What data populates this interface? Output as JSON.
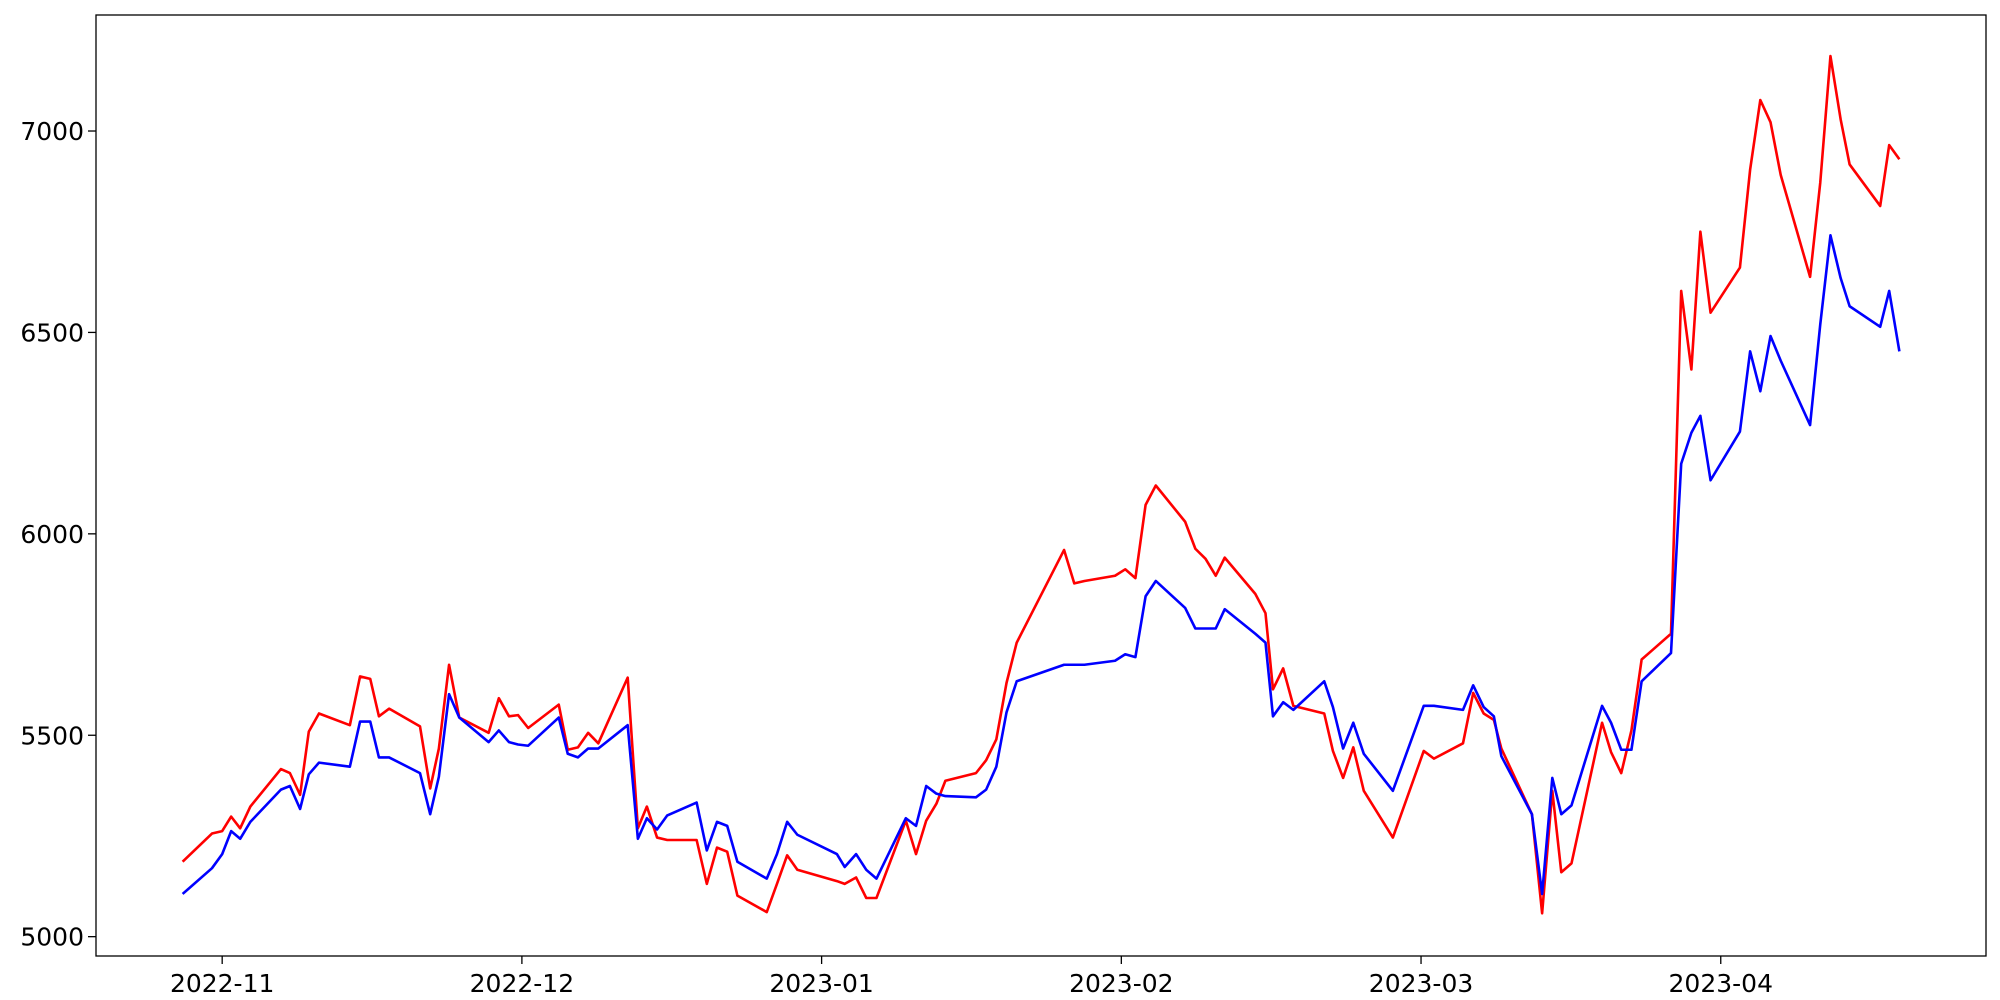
{
  "chart_data": {
    "type": "line",
    "x": [
      -0.132,
      -0.034,
      0,
      0.03,
      0.06,
      0.094,
      0.196,
      0.226,
      0.26,
      0.289,
      0.323,
      0.426,
      0.46,
      0.494,
      0.523,
      0.557,
      0.66,
      0.694,
      0.723,
      0.757,
      0.791,
      0.889,
      0.923,
      0.957,
      0.987,
      1.021,
      1.123,
      1.153,
      1.187,
      1.221,
      1.255,
      1.353,
      1.387,
      1.417,
      1.451,
      1.485,
      1.583,
      1.617,
      1.651,
      1.685,
      1.719,
      1.817,
      1.851,
      1.885,
      1.919,
      2.051,
      2.077,
      2.115,
      2.149,
      2.183,
      2.281,
      2.315,
      2.349,
      2.383,
      2.413,
      2.515,
      2.549,
      2.583,
      2.617,
      2.651,
      2.809,
      2.843,
      2.877,
      2.979,
      3.013,
      3.047,
      3.081,
      3.115,
      3.213,
      3.247,
      3.281,
      3.315,
      3.345,
      3.447,
      3.481,
      3.506,
      3.54,
      3.574,
      3.677,
      3.706,
      3.74,
      3.774,
      3.809,
      3.906,
      4.009,
      4.043,
      4.14,
      4.174,
      4.209,
      4.243,
      4.268,
      4.37,
      4.404,
      4.438,
      4.468,
      4.502,
      4.604,
      4.634,
      4.668,
      4.702,
      4.736,
      4.834,
      4.868,
      4.902,
      4.932,
      4.966,
      5.064,
      5.098,
      5.132,
      5.166,
      5.2,
      5.298,
      5.332,
      5.366,
      5.4,
      5.43,
      5.532,
      5.562,
      5.596
    ],
    "series": [
      {
        "color": "#ff0000",
        "values": [
          5186,
          5256,
          5262,
          5298,
          5269,
          5323,
          5416,
          5406,
          5352,
          5509,
          5554,
          5525,
          5646,
          5640,
          5547,
          5566,
          5522,
          5368,
          5467,
          5675,
          5544,
          5506,
          5592,
          5547,
          5550,
          5518,
          5576,
          5464,
          5470,
          5506,
          5480,
          5643,
          5269,
          5323,
          5246,
          5240,
          5240,
          5131,
          5221,
          5211,
          5102,
          5061,
          5131,
          5202,
          5166,
          5138,
          5131,
          5147,
          5096,
          5096,
          5288,
          5205,
          5288,
          5330,
          5387,
          5406,
          5438,
          5490,
          5630,
          5730,
          5960,
          5877,
          5883,
          5896,
          5912,
          5890,
          6072,
          6120,
          6030,
          5963,
          5938,
          5896,
          5941,
          5851,
          5803,
          5614,
          5666,
          5573,
          5554,
          5461,
          5394,
          5470,
          5362,
          5246,
          5461,
          5442,
          5480,
          5605,
          5554,
          5538,
          5467,
          5304,
          5058,
          5362,
          5160,
          5182,
          5531,
          5458,
          5406,
          5512,
          5688,
          5752,
          6603,
          6408,
          6750,
          6549,
          6661,
          6904,
          7077,
          7022,
          6891,
          6638,
          6872,
          7186,
          7029,
          6917,
          6814,
          6965,
          6930
        ]
      },
      {
        "color": "#0000ff",
        "values": [
          5106,
          5170,
          5205,
          5262,
          5243,
          5285,
          5365,
          5374,
          5317,
          5403,
          5432,
          5422,
          5534,
          5534,
          5445,
          5445,
          5406,
          5304,
          5397,
          5602,
          5544,
          5483,
          5512,
          5483,
          5477,
          5474,
          5544,
          5454,
          5445,
          5467,
          5467,
          5525,
          5243,
          5294,
          5266,
          5301,
          5333,
          5214,
          5285,
          5275,
          5186,
          5144,
          5205,
          5285,
          5253,
          5205,
          5173,
          5205,
          5166,
          5144,
          5294,
          5275,
          5374,
          5355,
          5349,
          5346,
          5365,
          5422,
          5557,
          5634,
          5675,
          5675,
          5675,
          5685,
          5701,
          5694,
          5845,
          5883,
          5816,
          5765,
          5765,
          5765,
          5813,
          5752,
          5730,
          5547,
          5582,
          5563,
          5634,
          5570,
          5467,
          5531,
          5454,
          5362,
          5573,
          5573,
          5563,
          5624,
          5570,
          5547,
          5448,
          5304,
          5106,
          5394,
          5304,
          5326,
          5573,
          5531,
          5464,
          5464,
          5634,
          5704,
          6174,
          6251,
          6293,
          6133,
          6254,
          6453,
          6354,
          6491,
          6430,
          6270,
          6520,
          6741,
          6635,
          6565,
          6514,
          6603,
          6453
        ]
      }
    ],
    "xlim": [
      -0.421,
      5.885
    ],
    "xticks": [
      {
        "value": 0,
        "label": "2022-11"
      },
      {
        "value": 1,
        "label": "2022-12"
      },
      {
        "value": 2,
        "label": "2023-01"
      },
      {
        "value": 3,
        "label": "2023-02"
      },
      {
        "value": 4,
        "label": "2023-03"
      },
      {
        "value": 5,
        "label": "2023-04"
      }
    ],
    "ylim": [
      4952,
      7288
    ],
    "yticks": [
      5000,
      5500,
      6000,
      6500,
      7000
    ],
    "grid": false
  }
}
